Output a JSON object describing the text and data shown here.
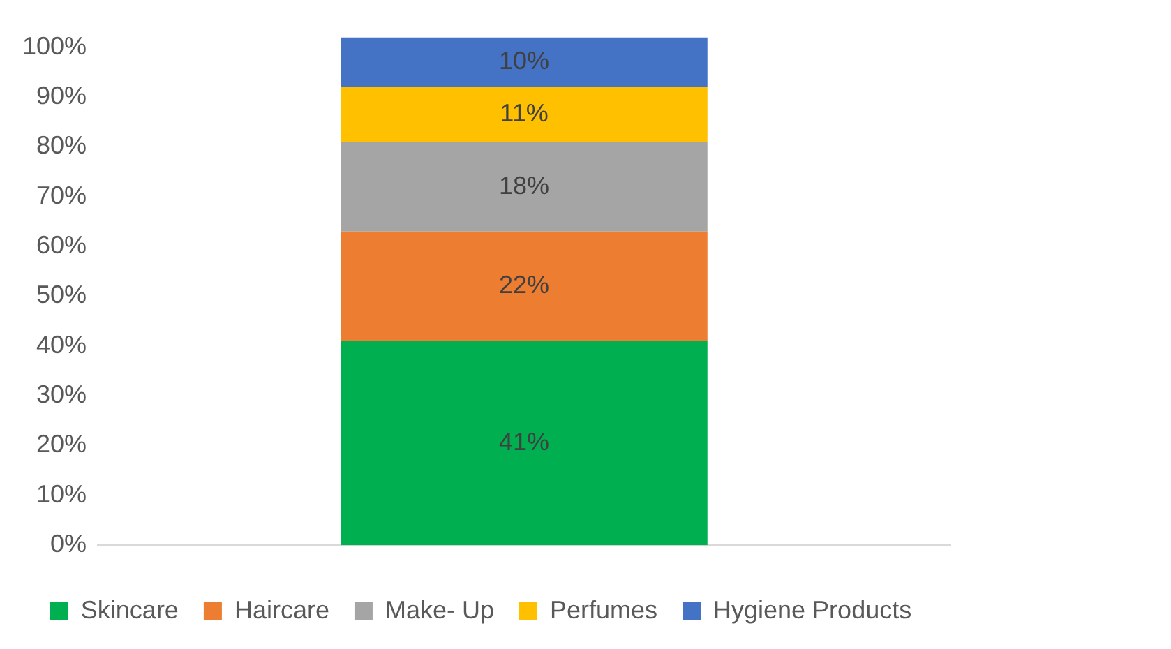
{
  "chart_data": {
    "type": "bar",
    "stacked": true,
    "categories": [
      null
    ],
    "series": [
      {
        "name": "Skincare",
        "color": "#00b050",
        "values": [
          41
        ]
      },
      {
        "name": "Haircare",
        "color": "#ed7d31",
        "values": [
          22
        ]
      },
      {
        "name": "Make- Up",
        "color": "#a5a5a5",
        "values": [
          18
        ]
      },
      {
        "name": "Perfumes",
        "color": "#ffc000",
        "values": [
          11
        ]
      },
      {
        "name": "Hygiene Products",
        "color": "#4472c4",
        "values": [
          10
        ]
      }
    ],
    "ylim": [
      0,
      102
    ],
    "yticks": [
      {
        "value": 0,
        "label": "0%"
      },
      {
        "value": 10,
        "label": "10%"
      },
      {
        "value": 20,
        "label": "20%"
      },
      {
        "value": 30,
        "label": "30%"
      },
      {
        "value": 40,
        "label": "40%"
      },
      {
        "value": 50,
        "label": "50%"
      },
      {
        "value": 60,
        "label": "60%"
      },
      {
        "value": 70,
        "label": "70%"
      },
      {
        "value": 80,
        "label": "80%"
      },
      {
        "value": 90,
        "label": "90%"
      },
      {
        "value": 100,
        "label": "100%"
      }
    ],
    "value_labels": [
      "41%",
      "22%",
      "18%",
      "11%",
      "10%"
    ],
    "grid": false,
    "legend": "bottom"
  }
}
